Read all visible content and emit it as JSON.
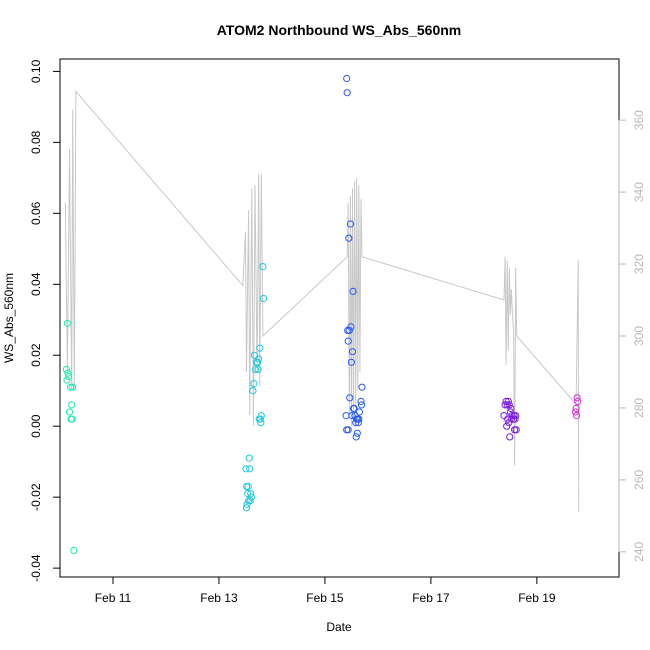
{
  "chart_data": {
    "type": "scatter",
    "title": "ATOM2 Northbound WS_Abs_560nm",
    "xlabel": "Date",
    "ylabel": "WS_Abs_560nm",
    "x_unit": "days since Feb 10 00:00",
    "xlim": [
      0,
      10.55
    ],
    "ylim": [
      -0.0425,
      0.1035
    ],
    "y2lim": [
      233,
      377
    ],
    "x_ticks": [
      {
        "value": 1,
        "label": "Feb 11"
      },
      {
        "value": 3,
        "label": "Feb 13"
      },
      {
        "value": 5,
        "label": "Feb 15"
      },
      {
        "value": 7,
        "label": "Feb 17"
      },
      {
        "value": 9,
        "label": "Feb 19"
      }
    ],
    "y_ticks": [
      {
        "value": -0.04,
        "label": "-0.04"
      },
      {
        "value": -0.02,
        "label": "-0.02"
      },
      {
        "value": 0.0,
        "label": "0.00"
      },
      {
        "value": 0.02,
        "label": "0.02"
      },
      {
        "value": 0.04,
        "label": "0.04"
      },
      {
        "value": 0.06,
        "label": "0.06"
      },
      {
        "value": 0.08,
        "label": "0.08"
      },
      {
        "value": 0.1,
        "label": "0.10"
      }
    ],
    "y2_ticks": [
      {
        "value": 240,
        "label": "240"
      },
      {
        "value": 260,
        "label": "260"
      },
      {
        "value": 280,
        "label": "280"
      },
      {
        "value": 300,
        "label": "300"
      },
      {
        "value": 320,
        "label": "320"
      },
      {
        "value": 340,
        "label": "340"
      },
      {
        "value": 360,
        "label": "360"
      }
    ],
    "series": [
      {
        "name": "WS_Abs_560nm",
        "kind": "points",
        "points": [
          {
            "x": 0.14,
            "y": 0.029,
            "color": "#1de9b6"
          },
          {
            "x": 0.12,
            "y": 0.016,
            "color": "#1de9b6"
          },
          {
            "x": 0.15,
            "y": 0.015,
            "color": "#1de9b6"
          },
          {
            "x": 0.13,
            "y": 0.013,
            "color": "#1de9b6"
          },
          {
            "x": 0.16,
            "y": 0.014,
            "color": "#1de9b6"
          },
          {
            "x": 0.2,
            "y": 0.011,
            "color": "#1de9b6"
          },
          {
            "x": 0.24,
            "y": 0.011,
            "color": "#1de9b6"
          },
          {
            "x": 0.22,
            "y": 0.006,
            "color": "#1de9b6"
          },
          {
            "x": 0.18,
            "y": 0.004,
            "color": "#1de9b6"
          },
          {
            "x": 0.21,
            "y": 0.002,
            "color": "#1de9b6"
          },
          {
            "x": 0.23,
            "y": 0.002,
            "color": "#1de9b6"
          },
          {
            "x": 0.26,
            "y": -0.035,
            "color": "#1de9b6"
          },
          {
            "x": 3.83,
            "y": 0.045,
            "color": "#20c7e0"
          },
          {
            "x": 3.84,
            "y": 0.036,
            "color": "#20c7e0"
          },
          {
            "x": 3.77,
            "y": 0.022,
            "color": "#20c7e0"
          },
          {
            "x": 3.67,
            "y": 0.02,
            "color": "#20c7e0"
          },
          {
            "x": 3.75,
            "y": 0.019,
            "color": "#20c7e0"
          },
          {
            "x": 3.71,
            "y": 0.018,
            "color": "#20c7e0"
          },
          {
            "x": 3.73,
            "y": 0.018,
            "color": "#20c7e0"
          },
          {
            "x": 3.69,
            "y": 0.016,
            "color": "#20c7e0"
          },
          {
            "x": 3.74,
            "y": 0.016,
            "color": "#20c7e0"
          },
          {
            "x": 3.66,
            "y": 0.012,
            "color": "#20c7e0"
          },
          {
            "x": 3.64,
            "y": 0.01,
            "color": "#20c7e0"
          },
          {
            "x": 3.8,
            "y": 0.003,
            "color": "#20c7e0"
          },
          {
            "x": 3.76,
            "y": 0.002,
            "color": "#20c7e0"
          },
          {
            "x": 3.78,
            "y": 0.002,
            "color": "#20c7e0"
          },
          {
            "x": 3.79,
            "y": 0.001,
            "color": "#20c7e0"
          },
          {
            "x": 3.57,
            "y": -0.009,
            "color": "#20c7e0"
          },
          {
            "x": 3.51,
            "y": -0.012,
            "color": "#20c7e0"
          },
          {
            "x": 3.58,
            "y": -0.012,
            "color": "#20c7e0"
          },
          {
            "x": 3.52,
            "y": -0.017,
            "color": "#20c7e0"
          },
          {
            "x": 3.55,
            "y": -0.017,
            "color": "#20c7e0"
          },
          {
            "x": 3.54,
            "y": -0.019,
            "color": "#20c7e0"
          },
          {
            "x": 3.6,
            "y": -0.019,
            "color": "#20c7e0"
          },
          {
            "x": 3.61,
            "y": -0.02,
            "color": "#20c7e0"
          },
          {
            "x": 3.59,
            "y": -0.021,
            "color": "#20c7e0"
          },
          {
            "x": 3.56,
            "y": -0.021,
            "color": "#20c7e0"
          },
          {
            "x": 3.53,
            "y": -0.022,
            "color": "#20c7e0"
          },
          {
            "x": 3.52,
            "y": -0.023,
            "color": "#20c7e0"
          },
          {
            "x": 5.41,
            "y": 0.098,
            "color": "#2a5bf0"
          },
          {
            "x": 5.42,
            "y": 0.094,
            "color": "#2a5bf0"
          },
          {
            "x": 5.48,
            "y": 0.057,
            "color": "#2a5bf0"
          },
          {
            "x": 5.45,
            "y": 0.053,
            "color": "#2a5bf0"
          },
          {
            "x": 5.53,
            "y": 0.038,
            "color": "#2a5bf0"
          },
          {
            "x": 5.49,
            "y": 0.028,
            "color": "#2a5bf0"
          },
          {
            "x": 5.43,
            "y": 0.027,
            "color": "#2a5bf0"
          },
          {
            "x": 5.46,
            "y": 0.027,
            "color": "#2a5bf0"
          },
          {
            "x": 5.44,
            "y": 0.024,
            "color": "#2a5bf0"
          },
          {
            "x": 5.52,
            "y": 0.021,
            "color": "#2a5bf0"
          },
          {
            "x": 5.5,
            "y": 0.018,
            "color": "#2a5bf0"
          },
          {
            "x": 5.7,
            "y": 0.011,
            "color": "#2a5bf0"
          },
          {
            "x": 5.47,
            "y": 0.008,
            "color": "#2a5bf0"
          },
          {
            "x": 5.68,
            "y": 0.007,
            "color": "#2a5bf0"
          },
          {
            "x": 5.69,
            "y": 0.006,
            "color": "#2a5bf0"
          },
          {
            "x": 5.54,
            "y": 0.005,
            "color": "#2a5bf0"
          },
          {
            "x": 5.55,
            "y": 0.005,
            "color": "#2a5bf0"
          },
          {
            "x": 5.65,
            "y": 0.004,
            "color": "#2a5bf0"
          },
          {
            "x": 5.4,
            "y": 0.003,
            "color": "#2a5bf0"
          },
          {
            "x": 5.57,
            "y": 0.003,
            "color": "#2a5bf0"
          },
          {
            "x": 5.51,
            "y": 0.003,
            "color": "#2a5bf0"
          },
          {
            "x": 5.6,
            "y": 0.002,
            "color": "#2a5bf0"
          },
          {
            "x": 5.62,
            "y": 0.002,
            "color": "#2a5bf0"
          },
          {
            "x": 5.64,
            "y": 0.002,
            "color": "#2a5bf0"
          },
          {
            "x": 5.58,
            "y": 0.001,
            "color": "#2a5bf0"
          },
          {
            "x": 5.63,
            "y": 0.001,
            "color": "#2a5bf0"
          },
          {
            "x": 5.41,
            "y": -0.001,
            "color": "#2a5bf0"
          },
          {
            "x": 5.44,
            "y": -0.001,
            "color": "#2a5bf0"
          },
          {
            "x": 5.61,
            "y": -0.002,
            "color": "#2a5bf0"
          },
          {
            "x": 5.59,
            "y": -0.003,
            "color": "#2a5bf0"
          },
          {
            "x": 8.42,
            "y": 0.007,
            "color": "#7a1ee0"
          },
          {
            "x": 8.46,
            "y": 0.007,
            "color": "#7a1ee0"
          },
          {
            "x": 8.4,
            "y": 0.006,
            "color": "#7a1ee0"
          },
          {
            "x": 8.44,
            "y": 0.006,
            "color": "#7a1ee0"
          },
          {
            "x": 8.48,
            "y": 0.006,
            "color": "#7a1ee0"
          },
          {
            "x": 8.51,
            "y": 0.005,
            "color": "#7a1ee0"
          },
          {
            "x": 8.5,
            "y": 0.004,
            "color": "#7a1ee0"
          },
          {
            "x": 8.38,
            "y": 0.003,
            "color": "#7a1ee0"
          },
          {
            "x": 8.53,
            "y": 0.003,
            "color": "#7a1ee0"
          },
          {
            "x": 8.57,
            "y": 0.003,
            "color": "#7a1ee0"
          },
          {
            "x": 8.6,
            "y": 0.003,
            "color": "#7a1ee0"
          },
          {
            "x": 8.45,
            "y": 0.002,
            "color": "#7a1ee0"
          },
          {
            "x": 8.52,
            "y": 0.002,
            "color": "#7a1ee0"
          },
          {
            "x": 8.56,
            "y": 0.002,
            "color": "#7a1ee0"
          },
          {
            "x": 8.59,
            "y": 0.002,
            "color": "#7a1ee0"
          },
          {
            "x": 8.47,
            "y": 0.001,
            "color": "#7a1ee0"
          },
          {
            "x": 8.43,
            "y": 0.0,
            "color": "#7a1ee0"
          },
          {
            "x": 8.58,
            "y": -0.001,
            "color": "#7a1ee0"
          },
          {
            "x": 8.61,
            "y": -0.001,
            "color": "#7a1ee0"
          },
          {
            "x": 8.49,
            "y": -0.003,
            "color": "#7a1ee0"
          },
          {
            "x": 9.76,
            "y": 0.008,
            "color": "#d62ad6"
          },
          {
            "x": 9.77,
            "y": 0.007,
            "color": "#d62ad6"
          },
          {
            "x": 9.74,
            "y": 0.005,
            "color": "#d62ad6"
          },
          {
            "x": 9.73,
            "y": 0.004,
            "color": "#d62ad6"
          },
          {
            "x": 9.75,
            "y": 0.003,
            "color": "#d62ad6"
          }
        ]
      },
      {
        "name": "secondary (right axis)",
        "kind": "line",
        "axis": "right",
        "color": "#c8c8c8",
        "points": [
          [
            0.1,
            337
          ],
          [
            0.14,
            290
          ],
          [
            0.18,
            352
          ],
          [
            0.22,
            285
          ],
          [
            0.24,
            363
          ],
          [
            0.27,
            285
          ],
          [
            0.3,
            368
          ],
          [
            3.45,
            314
          ],
          [
            3.5,
            329
          ],
          [
            3.52,
            290
          ],
          [
            3.56,
            335
          ],
          [
            3.58,
            278
          ],
          [
            3.62,
            341
          ],
          [
            3.65,
            275
          ],
          [
            3.68,
            342
          ],
          [
            3.72,
            290
          ],
          [
            3.75,
            345
          ],
          [
            3.77,
            286
          ],
          [
            3.8,
            345
          ],
          [
            3.83,
            300
          ],
          [
            5.42,
            322
          ],
          [
            5.44,
            337
          ],
          [
            5.46,
            278
          ],
          [
            5.48,
            339
          ],
          [
            5.5,
            275
          ],
          [
            5.52,
            341
          ],
          [
            5.54,
            276
          ],
          [
            5.56,
            343
          ],
          [
            5.58,
            280
          ],
          [
            5.6,
            344
          ],
          [
            5.62,
            285
          ],
          [
            5.64,
            342
          ],
          [
            5.66,
            290
          ],
          [
            5.68,
            338
          ],
          [
            5.7,
            322
          ],
          [
            8.38,
            310
          ],
          [
            8.4,
            322
          ],
          [
            8.42,
            292
          ],
          [
            8.44,
            321
          ],
          [
            8.46,
            296
          ],
          [
            8.48,
            319
          ],
          [
            8.5,
            306
          ],
          [
            8.52,
            313
          ],
          [
            8.54,
            306
          ],
          [
            8.56,
            301
          ],
          [
            8.58,
            264
          ],
          [
            8.6,
            319
          ],
          [
            8.62,
            300
          ],
          [
            9.74,
            281
          ],
          [
            9.78,
            321
          ],
          [
            9.79,
            251
          ]
        ]
      }
    ]
  }
}
